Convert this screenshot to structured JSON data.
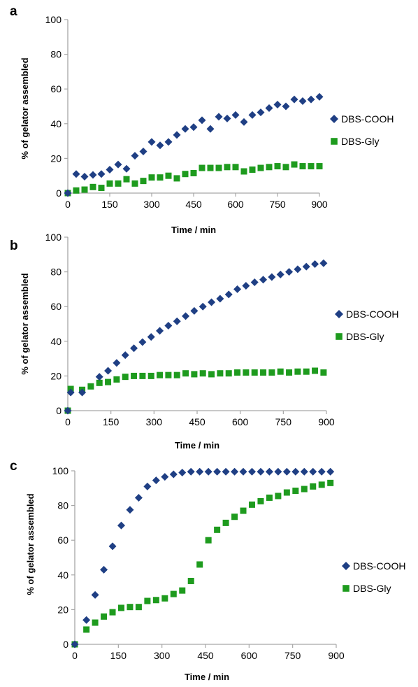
{
  "colors": {
    "cooh": "#1F3F84",
    "gly": "#1E9B1E",
    "axis": "#A6A6A6",
    "text": "#000000"
  },
  "icons": {
    "cooh": "diamond",
    "gly": "square"
  },
  "chart_data": [
    {
      "type": "scatter",
      "panel_label": "a",
      "xlabel": "Time / min",
      "ylabel": "% of gelator assembled",
      "xlim": [
        0,
        900
      ],
      "ylim": [
        0,
        100
      ],
      "x_ticks": [
        0,
        150,
        300,
        450,
        600,
        750,
        900
      ],
      "y_ticks": [
        0,
        20,
        40,
        60,
        80,
        100
      ],
      "grid": false,
      "legend_position": "right",
      "series": [
        {
          "name": "DBS-COOH",
          "marker": "diamond",
          "x": [
            0,
            30,
            60,
            90,
            120,
            150,
            180,
            210,
            240,
            270,
            300,
            330,
            360,
            390,
            420,
            450,
            480,
            510,
            540,
            570,
            600,
            630,
            660,
            690,
            720,
            750,
            780,
            810,
            840,
            870,
            900
          ],
          "y": [
            0,
            11,
            9.5,
            10.5,
            11,
            13.5,
            16.5,
            14,
            21.5,
            24,
            29.5,
            27.5,
            29.5,
            33.5,
            37,
            38,
            42,
            37,
            44,
            43,
            45,
            41,
            45,
            46.5,
            49,
            51,
            50,
            54,
            53,
            54,
            55.5
          ]
        },
        {
          "name": "DBS-Gly",
          "marker": "square",
          "x": [
            0,
            30,
            60,
            90,
            120,
            150,
            180,
            210,
            240,
            270,
            300,
            330,
            360,
            390,
            420,
            450,
            480,
            510,
            540,
            570,
            600,
            630,
            660,
            690,
            720,
            750,
            780,
            810,
            840,
            870,
            900
          ],
          "y": [
            0,
            1.5,
            2,
            3.5,
            3,
            5.5,
            5.5,
            8,
            5.5,
            7,
            9,
            9,
            10,
            8.5,
            11,
            11.5,
            14.5,
            14.5,
            14.5,
            15,
            15,
            12.5,
            13.5,
            14.5,
            15,
            15.5,
            15,
            16.5,
            15.5,
            15.5,
            15.5
          ]
        }
      ]
    },
    {
      "type": "scatter",
      "panel_label": "b",
      "xlabel": "Time / min",
      "ylabel": "% of gelator assembled",
      "xlim": [
        0,
        900
      ],
      "ylim": [
        0,
        100
      ],
      "x_ticks": [
        0,
        150,
        300,
        450,
        600,
        750,
        900
      ],
      "y_ticks": [
        0,
        20,
        40,
        60,
        80,
        100
      ],
      "grid": false,
      "legend_position": "right",
      "series": [
        {
          "name": "DBS-COOH",
          "marker": "diamond",
          "x": [
            0,
            10,
            50,
            110,
            140,
            170,
            200,
            230,
            260,
            290,
            320,
            350,
            380,
            410,
            440,
            470,
            500,
            530,
            560,
            590,
            620,
            650,
            680,
            710,
            740,
            770,
            800,
            830,
            860,
            890
          ],
          "y": [
            0,
            10.5,
            10.5,
            19.5,
            23,
            27.5,
            32,
            36,
            39.5,
            42.5,
            46,
            49,
            51.5,
            54.5,
            57.5,
            60,
            62.5,
            64.5,
            67,
            70,
            72,
            74,
            75.5,
            77,
            78.5,
            80,
            81.5,
            83,
            84.5,
            85
          ]
        },
        {
          "name": "DBS-Gly",
          "marker": "square",
          "x": [
            0,
            10,
            50,
            80,
            110,
            140,
            170,
            200,
            230,
            260,
            290,
            320,
            350,
            380,
            410,
            440,
            470,
            500,
            530,
            560,
            590,
            620,
            650,
            680,
            710,
            740,
            770,
            800,
            830,
            860,
            890
          ],
          "y": [
            0,
            12.5,
            12,
            14,
            16,
            16.5,
            18,
            19.5,
            20,
            20,
            20,
            20.5,
            20.5,
            20.5,
            21.5,
            21,
            21.5,
            21,
            21.5,
            21.5,
            22,
            22,
            22,
            22,
            22,
            22.5,
            22,
            22.5,
            22.5,
            23,
            22
          ]
        }
      ]
    },
    {
      "type": "scatter",
      "panel_label": "c",
      "xlabel": "Time / min",
      "ylabel": "% of gelator assembled",
      "xlim": [
        0,
        900
      ],
      "ylim": [
        0,
        100
      ],
      "x_ticks": [
        0,
        150,
        300,
        450,
        600,
        750,
        900
      ],
      "y_ticks": [
        0,
        20,
        40,
        60,
        80,
        100
      ],
      "grid": false,
      "legend_position": "right",
      "series": [
        {
          "name": "DBS-COOH",
          "marker": "diamond",
          "x": [
            0,
            40,
            70,
            100,
            130,
            160,
            190,
            220,
            250,
            280,
            310,
            340,
            370,
            400,
            430,
            460,
            490,
            520,
            550,
            580,
            610,
            640,
            670,
            700,
            730,
            760,
            790,
            820,
            850,
            880
          ],
          "y": [
            0,
            14,
            28.5,
            43,
            56.5,
            68.5,
            77.5,
            84.5,
            91,
            94.5,
            96.5,
            98,
            99,
            99.5,
            99.5,
            99.5,
            99.5,
            99.5,
            99.5,
            99.5,
            99.5,
            99.5,
            99.5,
            99.5,
            99.5,
            99.5,
            99.5,
            99.5,
            99.5,
            99.5
          ]
        },
        {
          "name": "DBS-Gly",
          "marker": "square",
          "x": [
            0,
            40,
            70,
            100,
            130,
            160,
            190,
            220,
            250,
            280,
            310,
            340,
            370,
            400,
            430,
            460,
            490,
            520,
            550,
            580,
            610,
            640,
            670,
            700,
            730,
            760,
            790,
            820,
            850,
            880
          ],
          "y": [
            0,
            8.5,
            12.5,
            16,
            18.5,
            21,
            21.5,
            21.5,
            25,
            25.5,
            26.5,
            29,
            31,
            36.5,
            46,
            60,
            66,
            70,
            73.5,
            77,
            80.5,
            82.5,
            84.5,
            85.5,
            87.5,
            88.5,
            89.5,
            91,
            92,
            93
          ]
        }
      ]
    }
  ]
}
